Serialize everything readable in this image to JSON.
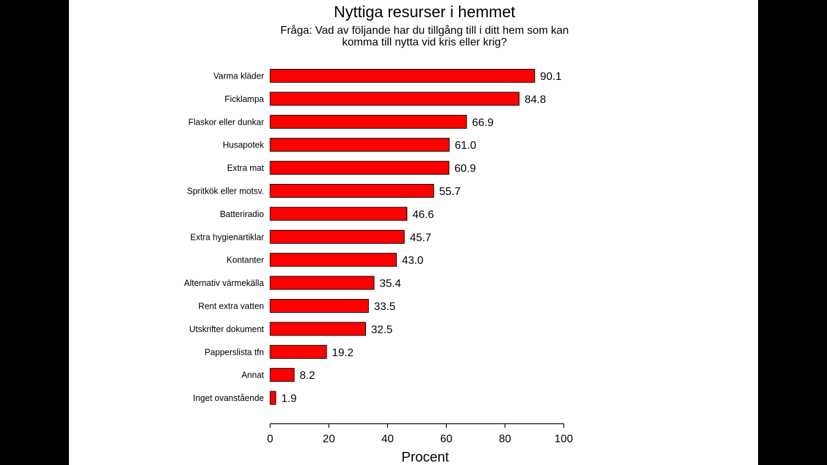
{
  "chart_data": {
    "type": "bar",
    "orientation": "horizontal",
    "title": "Nyttiga resurser i hemmet",
    "subtitle_lines": [
      "Fråga: Vad av följande har du tillgång till i ditt hem som kan",
      "komma till nytta vid kris eller krig?"
    ],
    "categories": [
      "Varma kläder",
      "Ficklampa",
      "Flaskor eller dunkar",
      "Husapotek",
      "Extra mat",
      "Spritkök eller motsv.",
      "Batteriradio",
      "Extra hygienartiklar",
      "Kontanter",
      "Alternativ värmekälla",
      "Rent extra vatten",
      "Utskrifter dokument",
      "Papperslista tfn",
      "Annat",
      "Inget ovanstående"
    ],
    "values": [
      90.1,
      84.8,
      66.9,
      61.0,
      60.9,
      55.7,
      46.6,
      45.7,
      43.0,
      35.4,
      33.5,
      32.5,
      19.2,
      8.2,
      1.9
    ],
    "value_labels": [
      "90.1",
      "84.8",
      "66.9",
      "61.0",
      "60.9",
      "55.7",
      "46.6",
      "45.7",
      "43.0",
      "35.4",
      "33.5",
      "32.5",
      "19.2",
      "8.2",
      "1.9"
    ],
    "xlabel": "Procent",
    "xlim": [
      0,
      100
    ],
    "xticks": [
      0,
      20,
      40,
      60,
      80,
      100
    ],
    "xtick_labels": [
      "0",
      "20",
      "40",
      "60",
      "80",
      "100"
    ],
    "grid": false,
    "bar_color": "#ff0000",
    "bar_edge_color": "#000000"
  }
}
